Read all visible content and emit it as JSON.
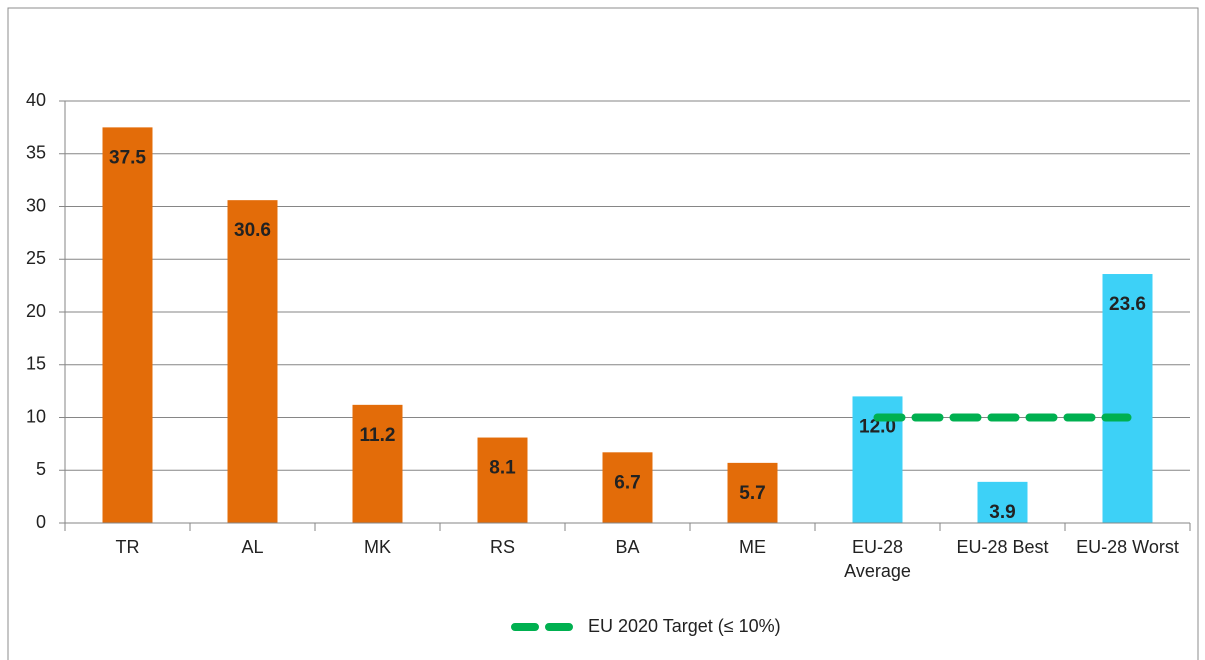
{
  "chart_data": {
    "type": "bar",
    "categories": [
      "TR",
      "AL",
      "MK",
      "RS",
      "BA",
      "ME",
      "EU-28 Average",
      "EU-28 Best",
      "EU-28 Worst"
    ],
    "values": [
      37.5,
      30.6,
      11.2,
      8.1,
      6.7,
      5.7,
      12.0,
      3.9,
      23.6
    ],
    "value_labels": [
      "37.5",
      "30.6",
      "11.2",
      "8.1",
      "6.7",
      "5.7",
      "12.0",
      "3.9",
      "23.6"
    ],
    "colors": [
      "#e36c09",
      "#e36c09",
      "#e36c09",
      "#e36c09",
      "#e36c09",
      "#e36c09",
      "#3dd1f7",
      "#3dd1f7",
      "#3dd1f7"
    ],
    "series": [
      {
        "name": "EU 2020 Target (≤ 10%)",
        "type": "line",
        "color": "#00b050",
        "values": [
          null,
          null,
          null,
          null,
          null,
          null,
          10,
          10,
          10
        ]
      }
    ],
    "ylim": [
      0,
      40
    ],
    "yticks": [
      0,
      5,
      10,
      15,
      20,
      25,
      30,
      35,
      40
    ],
    "grid": true,
    "legend": "bottom"
  }
}
